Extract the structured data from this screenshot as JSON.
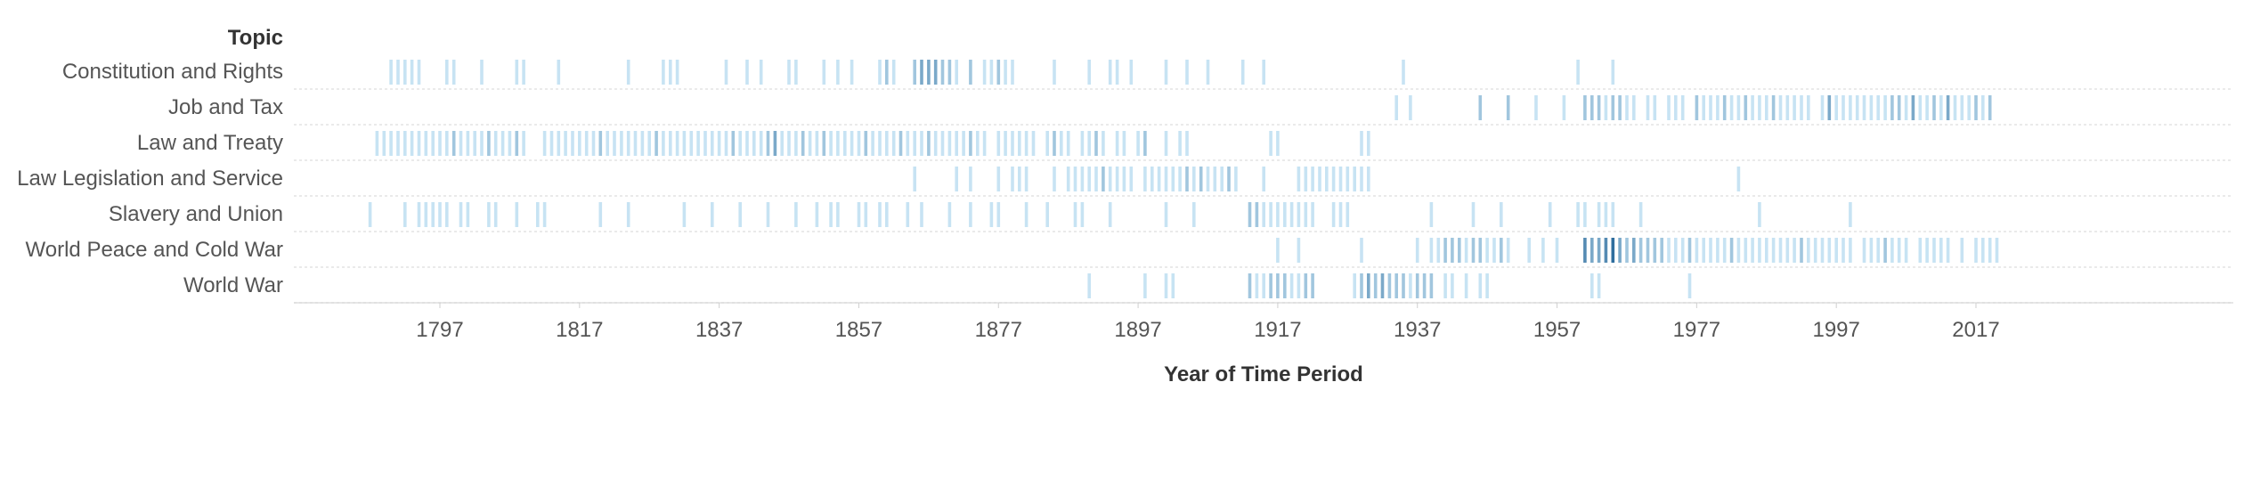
{
  "chart_data": {
    "type": "strip",
    "row_header": "Topic",
    "xlabel": "Year of Time Period",
    "x_ticks": [
      1797,
      1817,
      1837,
      1857,
      1877,
      1897,
      1917,
      1937,
      1957,
      1977,
      1997,
      2017
    ],
    "xlim": [
      1778,
      2030
    ],
    "grid": "horizontal dashed row separators",
    "color_scale": {
      "light": "#c7e3f3",
      "dark": "#2f6e9e",
      "meaning": "count of documents per year"
    },
    "categories": [
      "Constitution and Rights",
      "Job and Tax",
      "Law and Treaty",
      "Law Legislation and Service",
      "Slavery and Union",
      "World Peace and Cold War",
      "World War"
    ],
    "series": [
      {
        "name": "Constitution and Rights",
        "years": [
          1790,
          1791,
          1792,
          1793,
          1794,
          1798,
          1799,
          1803,
          1808,
          1809,
          1814,
          1824,
          1829,
          1830,
          1831,
          1838,
          1841,
          1843,
          1847,
          1848,
          1852,
          1854,
          1856,
          1860,
          1861,
          1862,
          1865,
          1866,
          1867,
          1868,
          1869,
          1870,
          1871,
          1873,
          1875,
          1876,
          1877,
          1878,
          1879,
          1885,
          1890,
          1893,
          1894,
          1896,
          1901,
          1904,
          1907,
          1912,
          1915,
          1935,
          1960,
          1965
        ],
        "counts": [
          1,
          1,
          1,
          1,
          1,
          1,
          1,
          1,
          1,
          1,
          1,
          1,
          1,
          1,
          1,
          1,
          1,
          1,
          1,
          1,
          1,
          1,
          1,
          1,
          2,
          1,
          2,
          3,
          3,
          3,
          2,
          2,
          1,
          2,
          1,
          1,
          2,
          1,
          1,
          1,
          1,
          1,
          1,
          1,
          1,
          1,
          1,
          1,
          1,
          1,
          1,
          1
        ]
      },
      {
        "name": "Job and Tax",
        "years": [
          1934,
          1936,
          1946,
          1950,
          1954,
          1958,
          1961,
          1962,
          1963,
          1964,
          1965,
          1966,
          1967,
          1968,
          1970,
          1971,
          1973,
          1974,
          1975,
          1977,
          1978,
          1979,
          1980,
          1981,
          1982,
          1983,
          1984,
          1985,
          1986,
          1987,
          1988,
          1989,
          1990,
          1991,
          1992,
          1993,
          1995,
          1996,
          1997,
          1998,
          1999,
          2000,
          2001,
          2002,
          2003,
          2004,
          2005,
          2006,
          2007,
          2008,
          2009,
          2010,
          2011,
          2012,
          2013,
          2014,
          2015,
          2016,
          2017,
          2018,
          2019
        ],
        "counts": [
          1,
          1,
          2,
          2,
          1,
          1,
          2,
          2,
          2,
          1,
          2,
          2,
          1,
          1,
          1,
          1,
          1,
          1,
          1,
          2,
          1,
          1,
          1,
          2,
          1,
          1,
          2,
          1,
          1,
          1,
          2,
          1,
          1,
          1,
          1,
          1,
          1,
          3,
          1,
          1,
          1,
          1,
          1,
          1,
          1,
          1,
          2,
          2,
          1,
          3,
          1,
          1,
          2,
          1,
          3,
          1,
          1,
          1,
          2,
          1,
          2
        ]
      },
      {
        "name": "Law and Treaty",
        "years": [
          1788,
          1789,
          1790,
          1791,
          1792,
          1793,
          1794,
          1795,
          1796,
          1797,
          1798,
          1799,
          1800,
          1801,
          1802,
          1803,
          1804,
          1805,
          1806,
          1807,
          1808,
          1809,
          1812,
          1813,
          1814,
          1815,
          1816,
          1817,
          1818,
          1819,
          1820,
          1821,
          1822,
          1823,
          1824,
          1825,
          1826,
          1827,
          1828,
          1829,
          1830,
          1831,
          1832,
          1833,
          1834,
          1835,
          1836,
          1837,
          1838,
          1839,
          1840,
          1841,
          1842,
          1843,
          1844,
          1845,
          1846,
          1847,
          1848,
          1849,
          1850,
          1851,
          1852,
          1853,
          1854,
          1855,
          1856,
          1857,
          1858,
          1859,
          1860,
          1861,
          1862,
          1863,
          1864,
          1865,
          1866,
          1867,
          1868,
          1869,
          1870,
          1871,
          1872,
          1873,
          1874,
          1875,
          1877,
          1878,
          1879,
          1880,
          1881,
          1882,
          1884,
          1885,
          1886,
          1887,
          1889,
          1890,
          1891,
          1892,
          1894,
          1895,
          1897,
          1898,
          1901,
          1903,
          1904,
          1916,
          1917,
          1929,
          1930
        ],
        "counts": [
          1,
          1,
          1,
          1,
          1,
          1,
          1,
          1,
          1,
          1,
          1,
          2,
          1,
          1,
          1,
          1,
          2,
          1,
          1,
          1,
          2,
          1,
          1,
          1,
          1,
          1,
          1,
          1,
          1,
          1,
          2,
          1,
          1,
          1,
          1,
          1,
          1,
          1,
          2,
          1,
          1,
          1,
          1,
          1,
          1,
          1,
          1,
          1,
          1,
          2,
          1,
          1,
          1,
          1,
          2,
          3,
          1,
          1,
          1,
          2,
          1,
          1,
          2,
          1,
          1,
          1,
          1,
          1,
          2,
          1,
          1,
          1,
          1,
          2,
          1,
          1,
          1,
          2,
          1,
          1,
          1,
          1,
          1,
          2,
          1,
          1,
          1,
          1,
          1,
          1,
          1,
          1,
          1,
          2,
          1,
          1,
          1,
          1,
          2,
          1,
          1,
          1,
          1,
          2,
          1,
          1,
          1,
          1,
          1,
          1,
          1
        ]
      },
      {
        "name": "Law Legislation and Service",
        "years": [
          1865,
          1871,
          1873,
          1877,
          1879,
          1880,
          1881,
          1885,
          1887,
          1888,
          1889,
          1890,
          1891,
          1892,
          1893,
          1894,
          1895,
          1896,
          1898,
          1899,
          1900,
          1901,
          1902,
          1903,
          1904,
          1905,
          1906,
          1907,
          1908,
          1909,
          1910,
          1911,
          1915,
          1920,
          1921,
          1922,
          1923,
          1924,
          1925,
          1926,
          1927,
          1928,
          1929,
          1930,
          1983
        ],
        "counts": [
          1,
          1,
          1,
          1,
          1,
          1,
          1,
          1,
          1,
          1,
          1,
          1,
          1,
          2,
          1,
          1,
          1,
          1,
          1,
          1,
          1,
          1,
          1,
          1,
          2,
          1,
          2,
          1,
          1,
          1,
          2,
          1,
          1,
          1,
          1,
          1,
          1,
          1,
          1,
          1,
          1,
          1,
          1,
          1,
          1
        ]
      },
      {
        "name": "Slavery and Union",
        "years": [
          1787,
          1792,
          1794,
          1795,
          1796,
          1797,
          1798,
          1800,
          1801,
          1804,
          1805,
          1808,
          1811,
          1812,
          1820,
          1824,
          1832,
          1836,
          1840,
          1844,
          1848,
          1851,
          1853,
          1854,
          1857,
          1858,
          1860,
          1861,
          1864,
          1866,
          1870,
          1873,
          1876,
          1877,
          1881,
          1884,
          1888,
          1889,
          1893,
          1901,
          1905,
          1913,
          1914,
          1915,
          1916,
          1917,
          1918,
          1919,
          1920,
          1921,
          1922,
          1925,
          1926,
          1927,
          1939,
          1945,
          1949,
          1956,
          1960,
          1961,
          1963,
          1964,
          1965,
          1969,
          1986,
          1999
        ],
        "counts": [
          1,
          1,
          1,
          1,
          1,
          1,
          1,
          1,
          1,
          1,
          1,
          1,
          1,
          1,
          1,
          1,
          1,
          1,
          1,
          1,
          1,
          1,
          1,
          1,
          1,
          1,
          1,
          1,
          1,
          1,
          1,
          1,
          1,
          1,
          1,
          1,
          1,
          1,
          1,
          1,
          1,
          2,
          2,
          1,
          1,
          1,
          1,
          1,
          1,
          1,
          1,
          1,
          1,
          1,
          1,
          1,
          1,
          1,
          1,
          1,
          1,
          1,
          1,
          1,
          1,
          1
        ]
      },
      {
        "name": "World Peace and Cold War",
        "years": [
          1917,
          1920,
          1929,
          1937,
          1939,
          1940,
          1941,
          1942,
          1943,
          1944,
          1945,
          1946,
          1947,
          1948,
          1949,
          1950,
          1953,
          1955,
          1957,
          1961,
          1962,
          1963,
          1964,
          1965,
          1966,
          1967,
          1968,
          1969,
          1970,
          1971,
          1972,
          1973,
          1974,
          1975,
          1976,
          1977,
          1978,
          1979,
          1980,
          1981,
          1982,
          1983,
          1984,
          1985,
          1986,
          1987,
          1988,
          1989,
          1990,
          1991,
          1992,
          1993,
          1994,
          1995,
          1996,
          1997,
          1998,
          1999,
          2001,
          2002,
          2003,
          2004,
          2005,
          2006,
          2007,
          2009,
          2010,
          2011,
          2012,
          2013,
          2015,
          2017,
          2018,
          2019,
          2020
        ],
        "counts": [
          1,
          1,
          1,
          1,
          1,
          1,
          2,
          2,
          2,
          1,
          2,
          2,
          1,
          1,
          2,
          1,
          1,
          1,
          1,
          4,
          3,
          3,
          4,
          5,
          3,
          2,
          3,
          2,
          2,
          2,
          2,
          1,
          1,
          1,
          2,
          1,
          1,
          1,
          1,
          1,
          2,
          1,
          1,
          1,
          1,
          1,
          1,
          1,
          1,
          1,
          2,
          1,
          1,
          1,
          1,
          1,
          1,
          1,
          1,
          1,
          1,
          2,
          1,
          1,
          1,
          1,
          1,
          1,
          1,
          1,
          1,
          1,
          1,
          1,
          1
        ]
      },
      {
        "name": "World War",
        "years": [
          1890,
          1898,
          1901,
          1902,
          1913,
          1914,
          1915,
          1916,
          1917,
          1918,
          1919,
          1920,
          1921,
          1922,
          1928,
          1929,
          1930,
          1931,
          1932,
          1933,
          1934,
          1935,
          1936,
          1937,
          1938,
          1939,
          1941,
          1942,
          1944,
          1946,
          1947,
          1962,
          1963,
          1976
        ],
        "counts": [
          1,
          1,
          1,
          1,
          2,
          1,
          1,
          2,
          2,
          2,
          1,
          1,
          2,
          2,
          1,
          2,
          3,
          2,
          3,
          2,
          2,
          2,
          1,
          2,
          2,
          2,
          1,
          1,
          1,
          1,
          1,
          1,
          1,
          1
        ]
      }
    ]
  }
}
